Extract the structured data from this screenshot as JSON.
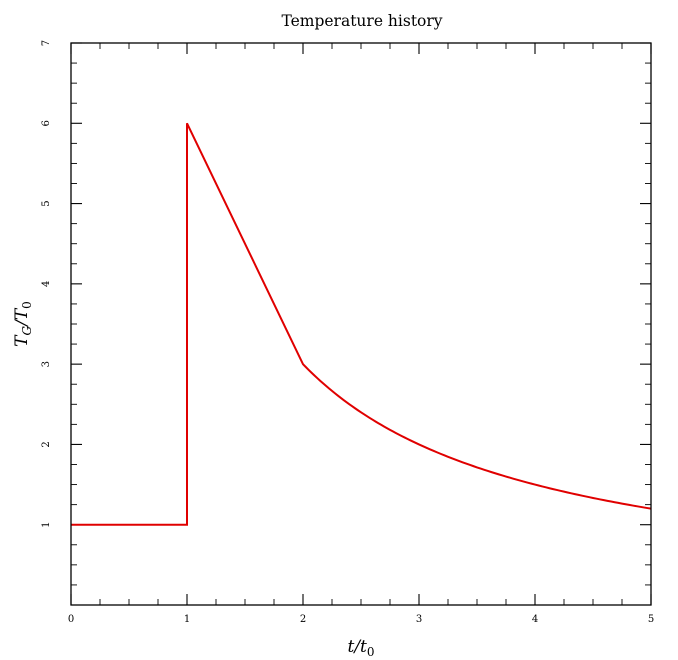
{
  "chart_data": {
    "type": "line",
    "title": "Temperature history",
    "xlabel": {
      "base": "t/t",
      "sub": "0"
    },
    "ylabel": {
      "base": "T",
      "sub1": "G",
      "mid": "/T",
      "sub2": "0"
    },
    "xlim": [
      0,
      5
    ],
    "ylim": [
      0,
      7
    ],
    "x_ticks": [
      0,
      1,
      2,
      3,
      4,
      5
    ],
    "y_ticks": [
      1,
      2,
      3,
      4,
      5,
      6,
      7
    ],
    "x_minor_step": 0.25,
    "y_minor_step": 0.25,
    "grid": false,
    "legend": "none",
    "series": [
      {
        "color": "#e00000",
        "x": [
          0,
          1,
          1,
          2,
          2.2,
          2.4,
          2.6,
          2.8,
          3,
          3.25,
          3.5,
          3.75,
          4,
          4.25,
          4.5,
          4.75,
          5
        ],
        "y": [
          1,
          1,
          6,
          3,
          2.727,
          2.5,
          2.308,
          2.143,
          2,
          1.846,
          1.714,
          1.6,
          1.5,
          1.412,
          1.333,
          1.263,
          1.2
        ]
      }
    ]
  }
}
